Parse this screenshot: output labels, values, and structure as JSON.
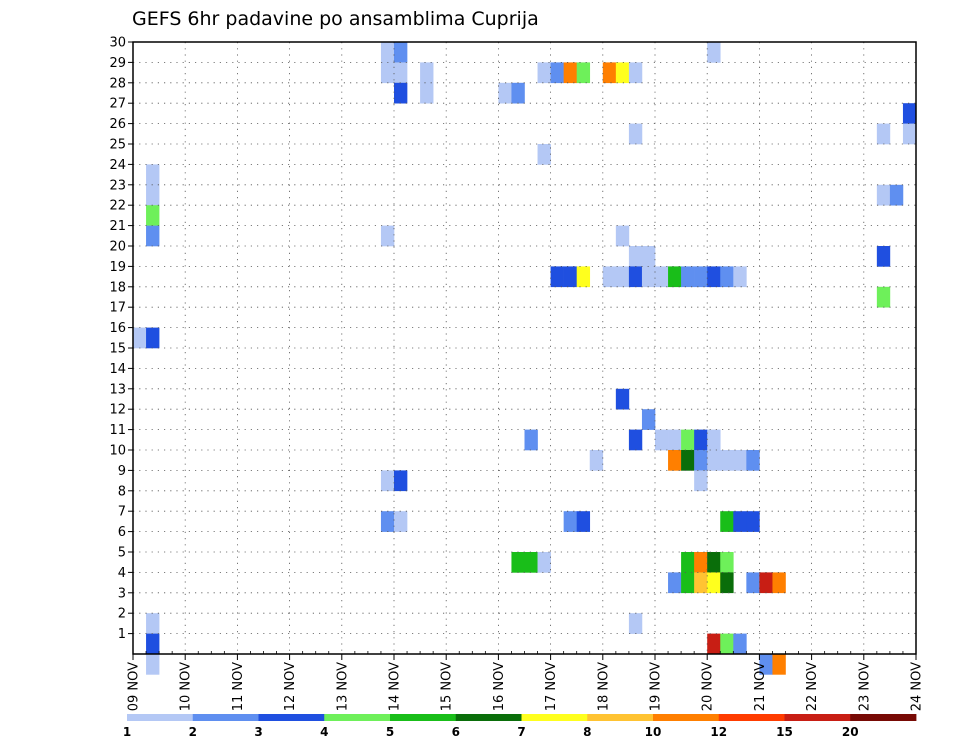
{
  "chart_data": {
    "type": "heatmap",
    "title": "GEFS 6hr padavine po ansamblima Cuprija",
    "xlabel": "",
    "ylabel": "",
    "x_tick_labels": [
      "09 NOV",
      "10 NOV",
      "11 NOV",
      "12 NOV",
      "13 NOV",
      "14 NOV",
      "15 NOV",
      "16 NOV",
      "17 NOV",
      "18 NOV",
      "19 NOV",
      "20 NOV",
      "21 NOV",
      "22 NOV",
      "23 NOV",
      "24 NOV"
    ],
    "y_tick_labels": [
      "1",
      "2",
      "3",
      "4",
      "5",
      "6",
      "7",
      "8",
      "9",
      "10",
      "11",
      "12",
      "13",
      "14",
      "15",
      "16",
      "17",
      "18",
      "19",
      "20",
      "21",
      "22",
      "23",
      "24",
      "25",
      "26",
      "27",
      "28",
      "29",
      "30"
    ],
    "x_unit": "6-hour step from 09 NOV 00Z (4 steps per day)",
    "xlim": [
      0,
      60
    ],
    "ylim": [
      0,
      30
    ],
    "grid": true,
    "color_levels": [
      "1",
      "2",
      "3",
      "4",
      "5",
      "6",
      "7",
      "8",
      "10",
      "12",
      "15",
      "20"
    ],
    "level_colors": [
      "#b4c8f5",
      "#5f8ff0",
      "#1f4fe0",
      "#6ef05a",
      "#19be19",
      "#0a6e0a",
      "#ffff1e",
      "#ffc332",
      "#ff7f00",
      "#ff3c00",
      "#c81e14",
      "#780a05"
    ],
    "cells": [
      [
        30,
        19,
        0
      ],
      [
        30,
        20,
        1
      ],
      [
        29,
        19,
        0
      ],
      [
        29,
        20,
        0
      ],
      [
        28,
        20,
        2
      ],
      [
        29,
        22,
        0
      ],
      [
        28,
        22,
        0
      ],
      [
        28,
        28,
        0
      ],
      [
        28,
        29,
        1
      ],
      [
        29,
        31,
        0
      ],
      [
        29,
        32,
        1
      ],
      [
        29,
        33,
        8
      ],
      [
        29,
        34,
        3
      ],
      [
        29,
        36,
        8
      ],
      [
        29,
        37,
        6
      ],
      [
        29,
        38,
        0
      ],
      [
        30,
        44,
        0
      ],
      [
        27,
        59,
        2
      ],
      [
        26,
        57,
        0
      ],
      [
        26,
        59,
        0
      ],
      [
        26,
        38,
        0
      ],
      [
        25,
        31,
        0
      ],
      [
        24,
        1,
        0
      ],
      [
        23,
        1,
        0
      ],
      [
        22,
        1,
        3
      ],
      [
        21,
        1,
        1
      ],
      [
        23,
        57,
        0
      ],
      [
        23,
        58,
        1
      ],
      [
        21,
        19,
        0
      ],
      [
        21,
        37,
        0
      ],
      [
        20,
        38,
        0
      ],
      [
        20,
        39,
        0
      ],
      [
        20,
        57,
        2
      ],
      [
        19,
        32,
        2
      ],
      [
        19,
        33,
        2
      ],
      [
        19,
        34,
        6
      ],
      [
        19,
        36,
        0
      ],
      [
        19,
        37,
        0
      ],
      [
        19,
        38,
        2
      ],
      [
        19,
        39,
        0
      ],
      [
        19,
        40,
        0
      ],
      [
        19,
        41,
        4
      ],
      [
        19,
        42,
        1
      ],
      [
        19,
        43,
        1
      ],
      [
        19,
        44,
        2
      ],
      [
        19,
        45,
        1
      ],
      [
        19,
        46,
        0
      ],
      [
        18,
        57,
        3
      ],
      [
        16,
        0,
        0
      ],
      [
        16,
        1,
        2
      ],
      [
        13,
        37,
        2
      ],
      [
        12,
        39,
        1
      ],
      [
        11,
        30,
        1
      ],
      [
        11,
        38,
        2
      ],
      [
        11,
        40,
        0
      ],
      [
        11,
        41,
        0
      ],
      [
        11,
        42,
        3
      ],
      [
        11,
        43,
        2
      ],
      [
        11,
        44,
        0
      ],
      [
        10,
        35,
        0
      ],
      [
        10,
        41,
        8
      ],
      [
        10,
        42,
        5
      ],
      [
        10,
        43,
        1
      ],
      [
        10,
        44,
        0
      ],
      [
        10,
        45,
        0
      ],
      [
        10,
        46,
        0
      ],
      [
        10,
        47,
        1
      ],
      [
        9,
        43,
        0
      ],
      [
        9,
        19,
        0
      ],
      [
        9,
        20,
        2
      ],
      [
        7,
        19,
        1
      ],
      [
        7,
        20,
        0
      ],
      [
        7,
        33,
        1
      ],
      [
        7,
        34,
        2
      ],
      [
        7,
        45,
        4
      ],
      [
        7,
        46,
        2
      ],
      [
        7,
        47,
        2
      ],
      [
        5,
        29,
        4
      ],
      [
        5,
        30,
        4
      ],
      [
        5,
        31,
        0
      ],
      [
        5,
        42,
        4
      ],
      [
        5,
        43,
        8
      ],
      [
        5,
        44,
        5
      ],
      [
        5,
        45,
        3
      ],
      [
        4,
        41,
        1
      ],
      [
        4,
        42,
        4
      ],
      [
        4,
        43,
        7
      ],
      [
        4,
        44,
        6
      ],
      [
        4,
        45,
        5
      ],
      [
        4,
        47,
        1
      ],
      [
        4,
        48,
        10
      ],
      [
        4,
        49,
        8
      ],
      [
        2,
        1,
        0
      ],
      [
        2,
        38,
        0
      ],
      [
        1,
        1,
        2
      ],
      [
        1,
        44,
        10
      ],
      [
        1,
        45,
        3
      ],
      [
        1,
        46,
        1
      ],
      [
        0,
        1,
        0
      ],
      [
        0,
        48,
        1
      ],
      [
        0,
        49,
        8
      ]
    ]
  }
}
